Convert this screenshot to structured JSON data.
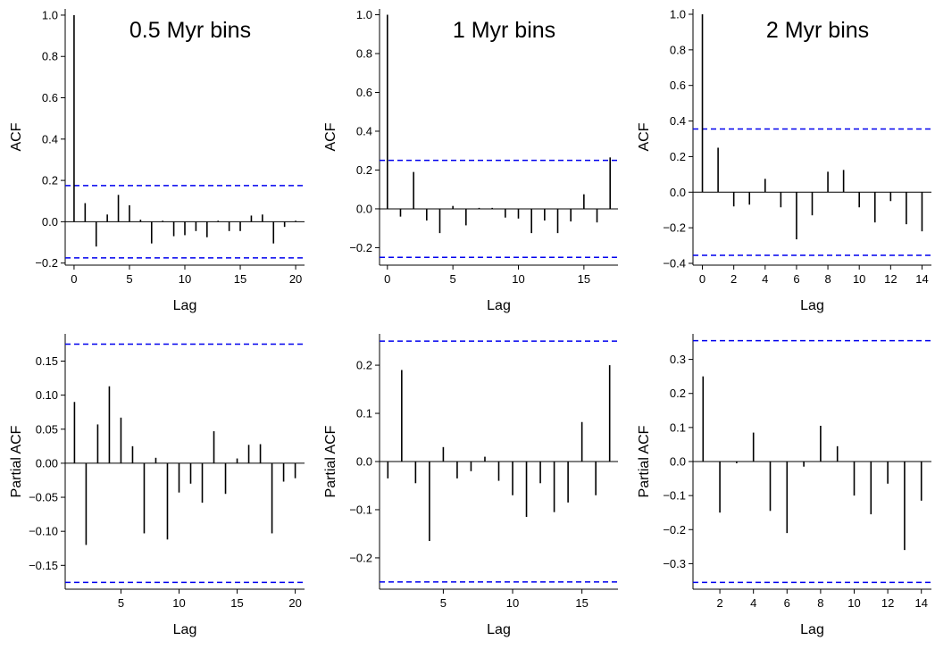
{
  "chart_data": [
    {
      "type": "bar",
      "title": "0.5 Myr bins",
      "xlabel": "Lag",
      "ylabel": "ACF",
      "xlim": [
        -0.8,
        20.8
      ],
      "ylim": [
        -0.21,
        1.03
      ],
      "xticks": [
        0,
        5,
        10,
        15,
        20
      ],
      "xtick_labels": [
        "0",
        "5",
        "10",
        "15",
        "20"
      ],
      "yticks": [
        -0.2,
        0.0,
        0.2,
        0.4,
        0.6,
        0.8,
        1.0
      ],
      "ytick_labels": [
        "−0.2",
        "0.0",
        "0.2",
        "0.4",
        "0.6",
        "0.8",
        "1.0"
      ],
      "x": [
        0,
        1,
        2,
        3,
        4,
        5,
        6,
        7,
        8,
        9,
        10,
        11,
        12,
        13,
        14,
        15,
        16,
        17,
        18,
        19,
        20
      ],
      "values": [
        1.0,
        0.09,
        -0.12,
        0.035,
        0.13,
        0.08,
        0.01,
        -0.105,
        0.005,
        -0.07,
        -0.065,
        -0.045,
        -0.075,
        0.005,
        -0.045,
        -0.045,
        0.03,
        0.035,
        -0.105,
        -0.025,
        0.005
      ],
      "confidence_bounds": [
        0.175,
        -0.175
      ],
      "bound_color": "#0000EE",
      "bar_color": "#000000",
      "grid": false
    },
    {
      "type": "bar",
      "title": "1 Myr bins",
      "xlabel": "Lag",
      "ylabel": "ACF",
      "xlim": [
        -0.6,
        17.6
      ],
      "ylim": [
        -0.29,
        1.03
      ],
      "xticks": [
        0,
        5,
        10,
        15
      ],
      "xtick_labels": [
        "0",
        "5",
        "10",
        "15"
      ],
      "yticks": [
        -0.2,
        0.0,
        0.2,
        0.4,
        0.6,
        0.8,
        1.0
      ],
      "ytick_labels": [
        "−0.2",
        "0.0",
        "0.2",
        "0.4",
        "0.6",
        "0.8",
        "1.0"
      ],
      "x": [
        0,
        1,
        2,
        3,
        4,
        5,
        6,
        7,
        8,
        9,
        10,
        11,
        12,
        13,
        14,
        15,
        16,
        17
      ],
      "values": [
        1.0,
        -0.04,
        0.19,
        -0.06,
        -0.125,
        0.015,
        -0.085,
        0.005,
        0.005,
        -0.045,
        -0.05,
        -0.125,
        -0.06,
        -0.125,
        -0.065,
        0.075,
        -0.07,
        0.265
      ],
      "confidence_bounds": [
        0.25,
        -0.25
      ],
      "bound_color": "#0000EE",
      "bar_color": "#000000",
      "grid": false
    },
    {
      "type": "bar",
      "title": "2 Myr bins",
      "xlabel": "Lag",
      "ylabel": "ACF",
      "xlim": [
        -0.6,
        14.6
      ],
      "ylim": [
        -0.41,
        1.03
      ],
      "xticks": [
        0,
        2,
        4,
        6,
        8,
        10,
        12,
        14
      ],
      "xtick_labels": [
        "0",
        "2",
        "4",
        "6",
        "8",
        "10",
        "12",
        "14"
      ],
      "yticks": [
        -0.4,
        -0.2,
        0.0,
        0.2,
        0.4,
        0.6,
        0.8,
        1.0
      ],
      "ytick_labels": [
        "−0.4",
        "−0.2",
        "0.0",
        "0.2",
        "0.4",
        "0.6",
        "0.8",
        "1.0"
      ],
      "x": [
        0,
        1,
        2,
        3,
        4,
        5,
        6,
        7,
        8,
        9,
        10,
        11,
        12,
        13,
        14
      ],
      "values": [
        1.0,
        0.25,
        -0.08,
        -0.07,
        0.075,
        -0.085,
        -0.265,
        -0.13,
        0.115,
        0.125,
        -0.085,
        -0.17,
        -0.05,
        -0.18,
        -0.22
      ],
      "confidence_bounds": [
        0.355,
        -0.355
      ],
      "bound_color": "#0000EE",
      "bar_color": "#000000",
      "grid": false
    },
    {
      "type": "bar",
      "title": "",
      "xlabel": "Lag",
      "ylabel": "Partial ACF",
      "xlim": [
        0.2,
        20.8
      ],
      "ylim": [
        -0.185,
        0.19
      ],
      "xticks": [
        5,
        10,
        15,
        20
      ],
      "xtick_labels": [
        "5",
        "10",
        "15",
        "20"
      ],
      "yticks": [
        -0.15,
        -0.1,
        -0.05,
        0.0,
        0.05,
        0.1,
        0.15
      ],
      "ytick_labels": [
        "−0.15",
        "−0.10",
        "−0.05",
        "0.00",
        "0.05",
        "0.10",
        "0.15"
      ],
      "x": [
        1,
        2,
        3,
        4,
        5,
        6,
        7,
        8,
        9,
        10,
        11,
        12,
        13,
        14,
        15,
        16,
        17,
        18,
        19,
        20
      ],
      "values": [
        0.09,
        -0.12,
        0.057,
        0.113,
        0.067,
        0.025,
        -0.103,
        0.008,
        -0.112,
        -0.043,
        -0.03,
        -0.058,
        0.047,
        -0.045,
        0.007,
        0.027,
        0.028,
        -0.103,
        -0.027,
        -0.022
      ],
      "confidence_bounds": [
        0.175,
        -0.175
      ],
      "bound_color": "#0000EE",
      "bar_color": "#000000",
      "grid": false
    },
    {
      "type": "bar",
      "title": "",
      "xlabel": "Lag",
      "ylabel": "Partial ACF",
      "xlim": [
        0.4,
        17.6
      ],
      "ylim": [
        -0.265,
        0.265
      ],
      "xticks": [
        5,
        10,
        15
      ],
      "xtick_labels": [
        "5",
        "10",
        "15"
      ],
      "yticks": [
        -0.2,
        -0.1,
        0.0,
        0.1,
        0.2
      ],
      "ytick_labels": [
        "−0.2",
        "−0.1",
        "0.0",
        "0.1",
        "0.2"
      ],
      "x": [
        1,
        2,
        3,
        4,
        5,
        6,
        7,
        8,
        9,
        10,
        11,
        12,
        13,
        14,
        15,
        16,
        17
      ],
      "values": [
        -0.035,
        0.19,
        -0.045,
        -0.165,
        0.03,
        -0.035,
        -0.02,
        0.01,
        -0.04,
        -0.07,
        -0.115,
        -0.045,
        -0.105,
        -0.085,
        0.082,
        -0.07,
        0.2
      ],
      "confidence_bounds": [
        0.25,
        -0.25
      ],
      "bound_color": "#0000EE",
      "bar_color": "#000000",
      "grid": false
    },
    {
      "type": "bar",
      "title": "",
      "xlabel": "Lag",
      "ylabel": "Partial ACF",
      "xlim": [
        0.4,
        14.6
      ],
      "ylim": [
        -0.375,
        0.375
      ],
      "xticks": [
        2,
        4,
        6,
        8,
        10,
        12,
        14
      ],
      "xtick_labels": [
        "2",
        "4",
        "6",
        "8",
        "10",
        "12",
        "14"
      ],
      "yticks": [
        -0.3,
        -0.2,
        -0.1,
        0.0,
        0.1,
        0.2,
        0.3
      ],
      "ytick_labels": [
        "−0.3",
        "−0.2",
        "−0.1",
        "0.0",
        "0.1",
        "0.2",
        "0.3"
      ],
      "x": [
        1,
        2,
        3,
        4,
        5,
        6,
        7,
        8,
        9,
        10,
        11,
        12,
        13,
        14
      ],
      "values": [
        0.25,
        -0.15,
        -0.005,
        0.085,
        -0.145,
        -0.21,
        -0.015,
        0.105,
        0.045,
        -0.1,
        -0.155,
        -0.065,
        -0.26,
        -0.115
      ],
      "confidence_bounds": [
        0.355,
        -0.355
      ],
      "bound_color": "#0000EE",
      "bar_color": "#000000",
      "grid": false
    }
  ]
}
